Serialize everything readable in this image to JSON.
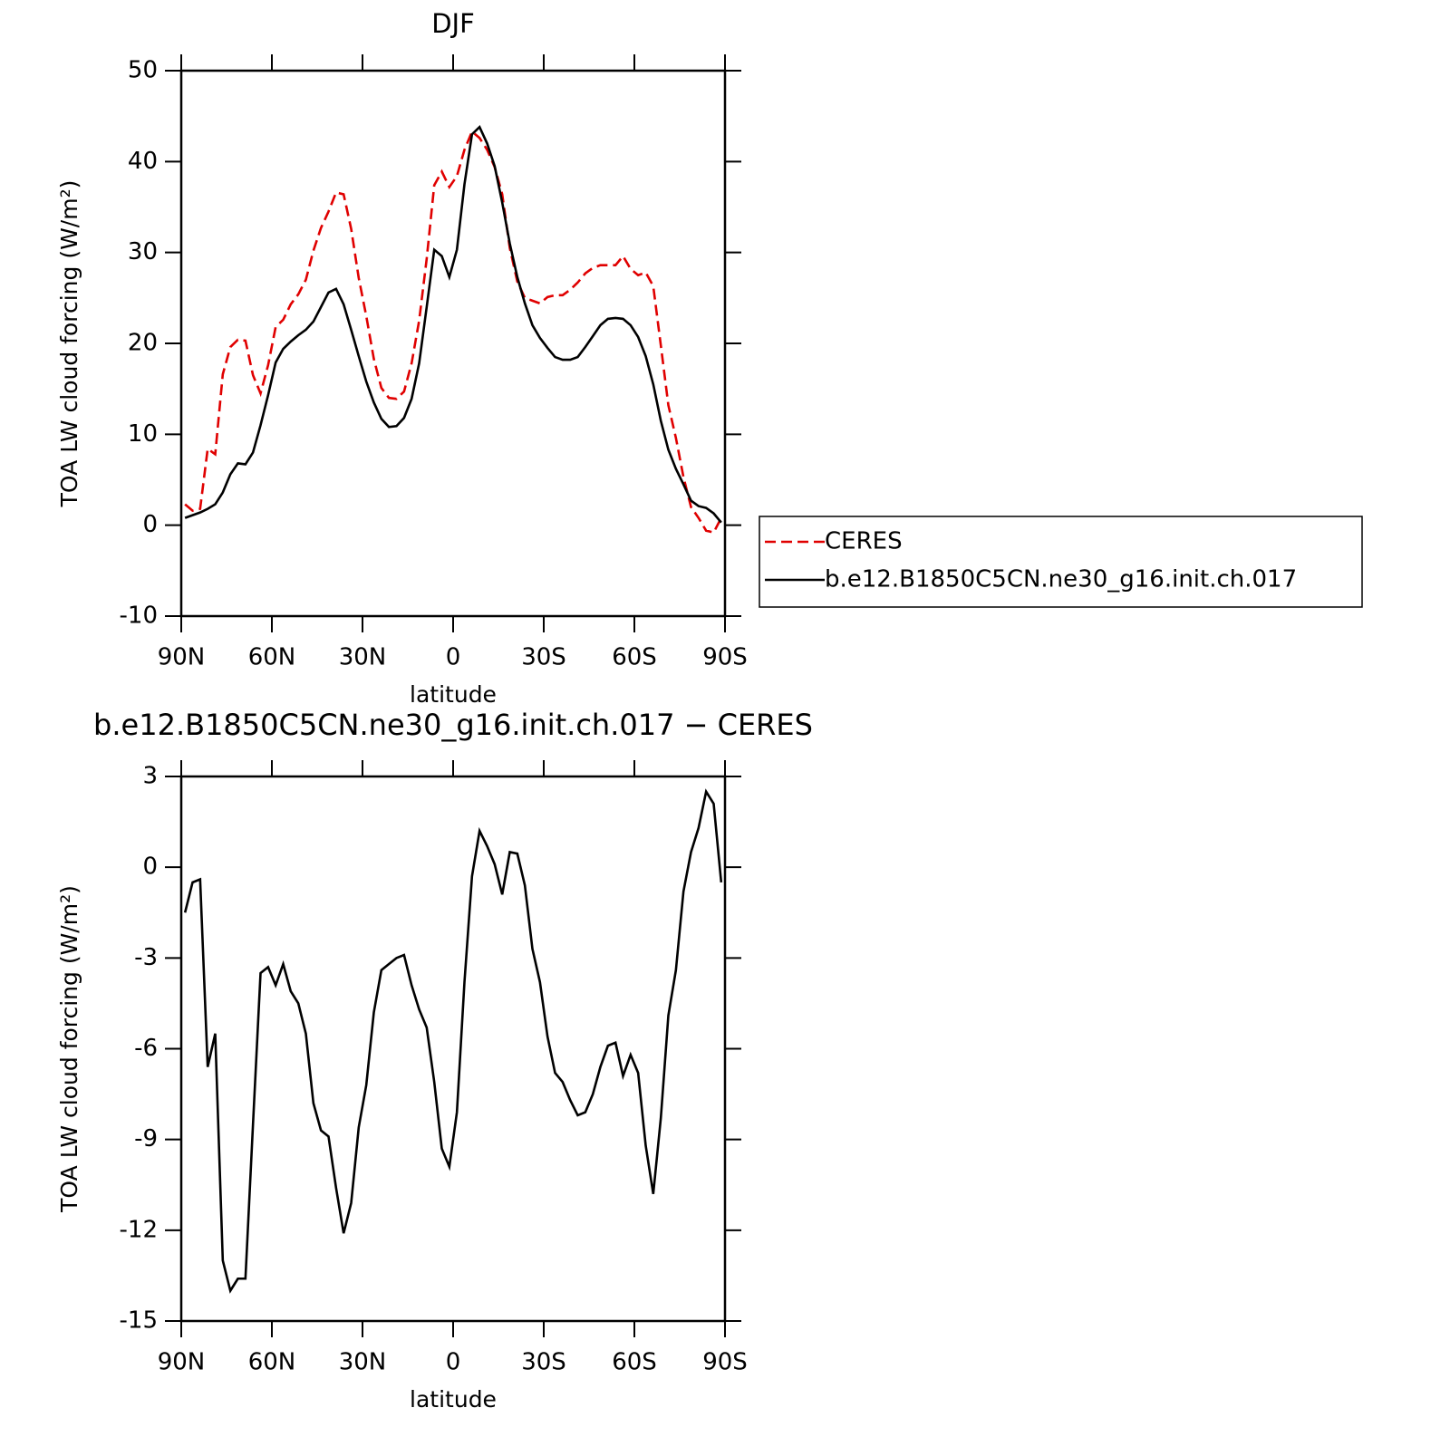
{
  "chart_data": [
    {
      "type": "line",
      "title": "DJF",
      "x_label": "latitude",
      "y_label": "TOA LW cloud forcing (W/m²)",
      "x": [
        88.75,
        86.25,
        83.75,
        81.25,
        78.75,
        76.25,
        73.75,
        71.25,
        68.75,
        66.25,
        63.75,
        61.25,
        58.75,
        56.25,
        53.75,
        51.25,
        48.75,
        46.25,
        43.75,
        41.25,
        38.75,
        36.25,
        33.75,
        31.25,
        28.75,
        26.25,
        23.75,
        21.25,
        18.75,
        16.25,
        13.75,
        11.25,
        8.75,
        6.25,
        3.75,
        1.25,
        -1.25,
        -3.75,
        -6.25,
        -8.75,
        -11.25,
        -13.75,
        -16.25,
        -18.75,
        -21.25,
        -23.75,
        -26.25,
        -28.75,
        -31.25,
        -33.75,
        -36.25,
        -38.75,
        -41.25,
        -43.75,
        -46.25,
        -48.75,
        -51.25,
        -53.75,
        -56.25,
        -58.75,
        -61.25,
        -63.75,
        -66.25,
        -68.75,
        -71.25,
        -73.75,
        -76.25,
        -78.75,
        -81.25,
        -83.75,
        -86.25,
        -88.75
      ],
      "series": [
        {
          "name": "CERES",
          "color": "#e00000",
          "linestyle": "dashed",
          "values": [
            2.3,
            1.6,
            1.8,
            8.4,
            7.8,
            16.6,
            19.6,
            20.4,
            20.3,
            16.5,
            14.5,
            17.6,
            21.8,
            22.6,
            24.3,
            25.4,
            27.0,
            30.2,
            32.7,
            34.5,
            36.6,
            36.4,
            32.6,
            27.2,
            23.0,
            18.3,
            15.1,
            14.0,
            13.9,
            14.7,
            17.8,
            22.5,
            29.3,
            37.4,
            38.9,
            37.2,
            38.4,
            41.3,
            43.3,
            42.6,
            41.3,
            39.4,
            36.4,
            30.5,
            26.8,
            25.0,
            24.7,
            24.4,
            25.1,
            25.3,
            25.3,
            25.9,
            26.7,
            27.7,
            28.3,
            28.6,
            28.6,
            28.6,
            29.6,
            28.2,
            27.5,
            27.8,
            26.3,
            19.8,
            13.2,
            9.6,
            5.3,
            2.0,
            0.8,
            -0.6,
            -0.8,
            0.8
          ]
        },
        {
          "name": "b.e12.B1850C5CN.ne30_g16.init.ch.017",
          "color": "#000000",
          "linestyle": "solid",
          "values": [
            0.8,
            1.1,
            1.4,
            1.8,
            2.3,
            3.6,
            5.6,
            6.8,
            6.7,
            8.0,
            11.0,
            14.3,
            17.9,
            19.4,
            20.2,
            20.9,
            21.5,
            22.4,
            24.0,
            25.6,
            26.0,
            24.3,
            21.5,
            18.6,
            15.8,
            13.5,
            11.7,
            10.8,
            10.9,
            11.8,
            13.9,
            17.8,
            24.0,
            30.3,
            29.6,
            27.3,
            30.3,
            37.5,
            43.0,
            43.8,
            42.0,
            39.5,
            35.5,
            31.0,
            27.3,
            24.4,
            22.0,
            20.6,
            19.5,
            18.5,
            18.2,
            18.2,
            18.5,
            19.6,
            20.8,
            22.0,
            22.7,
            22.8,
            22.7,
            22.0,
            20.7,
            18.6,
            15.5,
            11.5,
            8.3,
            6.2,
            4.5,
            2.7,
            2.1,
            1.9,
            1.3,
            0.3
          ]
        }
      ],
      "xlim": [
        90,
        -90
      ],
      "xticks": [
        {
          "value": 90,
          "label": "90N"
        },
        {
          "value": 60,
          "label": "60N"
        },
        {
          "value": 30,
          "label": "30N"
        },
        0,
        {
          "value": -30,
          "label": "30S"
        },
        {
          "value": -60,
          "label": "60S"
        },
        {
          "value": -90,
          "label": "90S"
        }
      ],
      "ylim": [
        -10,
        50
      ],
      "yticks": [
        -10,
        0,
        10,
        20,
        30,
        40,
        50
      ],
      "legend": "right"
    },
    {
      "type": "line",
      "title": "b.e12.B1850C5CN.ne30_g16.init.ch.017 − CERES",
      "x_label": "latitude",
      "y_label": "TOA LW cloud forcing (W/m²)",
      "x": [
        88.75,
        86.25,
        83.75,
        81.25,
        78.75,
        76.25,
        73.75,
        71.25,
        68.75,
        66.25,
        63.75,
        61.25,
        58.75,
        56.25,
        53.75,
        51.25,
        48.75,
        46.25,
        43.75,
        41.25,
        38.75,
        36.25,
        33.75,
        31.25,
        28.75,
        26.25,
        23.75,
        21.25,
        18.75,
        16.25,
        13.75,
        11.25,
        8.75,
        6.25,
        3.75,
        1.25,
        -1.25,
        -3.75,
        -6.25,
        -8.75,
        -11.25,
        -13.75,
        -16.25,
        -18.75,
        -21.25,
        -23.75,
        -26.25,
        -28.75,
        -31.25,
        -33.75,
        -36.25,
        -38.75,
        -41.25,
        -43.75,
        -46.25,
        -48.75,
        -51.25,
        -53.75,
        -56.25,
        -58.75,
        -61.25,
        -63.75,
        -66.25,
        -68.75,
        -71.25,
        -73.75,
        -76.25,
        -78.75,
        -81.25,
        -83.75,
        -86.25,
        -88.75
      ],
      "values": [
        -1.5,
        -0.5,
        -0.4,
        -6.6,
        -5.5,
        -13,
        -14,
        -13.6,
        -13.6,
        -8.5,
        -3.5,
        -3.3,
        -3.9,
        -3.2,
        -4.1,
        -4.5,
        -5.5,
        -7.8,
        -8.7,
        -8.9,
        -10.6,
        -12.1,
        -11.1,
        -8.6,
        -7.2,
        -4.8,
        -3.4,
        -3.2,
        -3.0,
        -2.9,
        -3.9,
        -4.7,
        -5.3,
        -7.1,
        -9.3,
        -9.9,
        -8.1,
        -3.8,
        -0.3,
        1.2,
        0.7,
        0.1,
        -0.9,
        0.5,
        0.45,
        -0.6,
        -2.7,
        -3.8,
        -5.6,
        -6.8,
        -7.1,
        -7.7,
        -8.2,
        -8.1,
        -7.5,
        -6.6,
        -5.9,
        -5.8,
        -6.9,
        -6.2,
        -6.8,
        -9.2,
        -10.8,
        -8.3,
        -4.9,
        -3.4,
        -0.8,
        0.5,
        1.3,
        2.5,
        2.1,
        -0.5
      ],
      "color": "#000000",
      "xlim": [
        90,
        -90
      ],
      "xticks": [
        {
          "value": 90,
          "label": "90N"
        },
        {
          "value": 60,
          "label": "60N"
        },
        {
          "value": 30,
          "label": "30N"
        },
        0,
        {
          "value": -30,
          "label": "30S"
        },
        {
          "value": -60,
          "label": "60S"
        },
        {
          "value": -90,
          "label": "90S"
        }
      ],
      "ylim": [
        -15,
        3
      ],
      "yticks": [
        -15,
        -12,
        -9,
        -6,
        -3,
        0,
        3
      ]
    }
  ]
}
